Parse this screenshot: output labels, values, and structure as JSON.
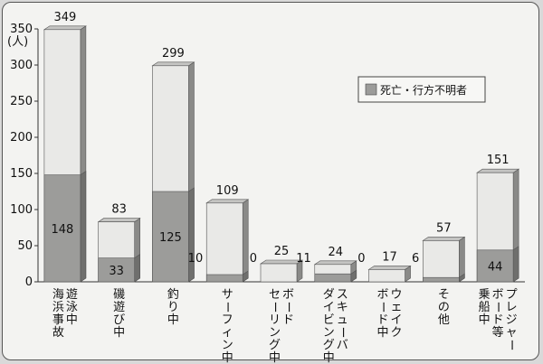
{
  "chart_data": {
    "type": "bar",
    "stacked": true,
    "unit_label": "(人)",
    "ylim": [
      0,
      350
    ],
    "yticks": [
      0,
      50,
      100,
      150,
      200,
      250,
      300,
      350
    ],
    "legend": {
      "label": "死亡・行方不明者",
      "placement": "top-right"
    },
    "categories": [
      [
        "遊泳中",
        "海浜事故"
      ],
      [
        "磯遊び中"
      ],
      [
        "釣り中"
      ],
      [
        "サーフィン中"
      ],
      [
        "ボード",
        "セーリング中"
      ],
      [
        "スキューバ",
        "ダイビング中"
      ],
      [
        "ウェイク",
        "ボード中"
      ],
      [
        "その他"
      ],
      [
        "プレジャー",
        "ボード等",
        "乗船中"
      ]
    ],
    "totals": [
      349,
      83,
      299,
      109,
      25,
      24,
      17,
      57,
      151
    ],
    "deaths": [
      148,
      33,
      125,
      10,
      0,
      11,
      0,
      6,
      44
    ],
    "show_death_label": [
      true,
      true,
      true,
      false,
      false,
      false,
      false,
      false,
      true
    ],
    "side_death_label": [
      false,
      false,
      false,
      true,
      true,
      true,
      true,
      true,
      false
    ],
    "colors": {
      "total": "#e9e9e7",
      "deaths": "#9c9c9a",
      "top": "#c4c4c2",
      "side": "#8a8a88",
      "sideDeath": "#6f6f6d"
    }
  }
}
